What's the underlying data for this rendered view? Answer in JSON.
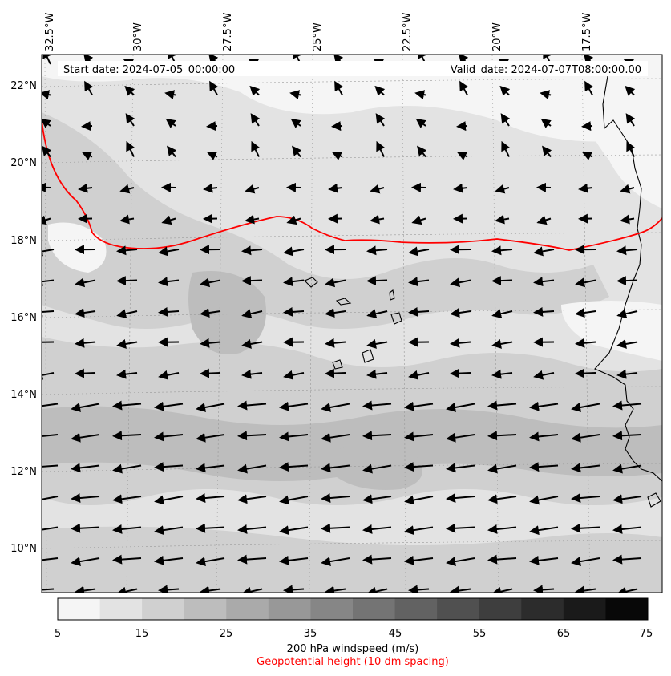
{
  "header": {
    "start_date": "Start date: 2024-07-05_00:00:00",
    "valid_date": "Valid_date: 2024-07-07T08:00:00.00"
  },
  "map": {
    "lon_ticks": [
      "32.5°W",
      "30°W",
      "27.5°W",
      "25°W",
      "22.5°W",
      "20°W",
      "17.5°W"
    ],
    "lat_ticks": [
      "22°N",
      "20°N",
      "18°N",
      "16°N",
      "14°N",
      "12°N",
      "10°N"
    ],
    "colors": {
      "contour_line": "#ff0000",
      "coastline": "#000000",
      "wind_vector": "#000000"
    }
  },
  "colorbar": {
    "levels": [
      "5",
      "15",
      "25",
      "35",
      "45",
      "55",
      "65",
      "75"
    ],
    "colors": [
      "#f5f5f5",
      "#e3e3e3",
      "#d0d0d0",
      "#bdbdbd",
      "#aaaaaa",
      "#989898",
      "#868686",
      "#747474",
      "#626262",
      "#505050",
      "#3e3e3e",
      "#2c2c2c",
      "#1a1a1a",
      "#080808"
    ],
    "title": "200 hPa windspeed (m/s)",
    "contour_title": "Geopotential height (10 dm spacing)"
  }
}
